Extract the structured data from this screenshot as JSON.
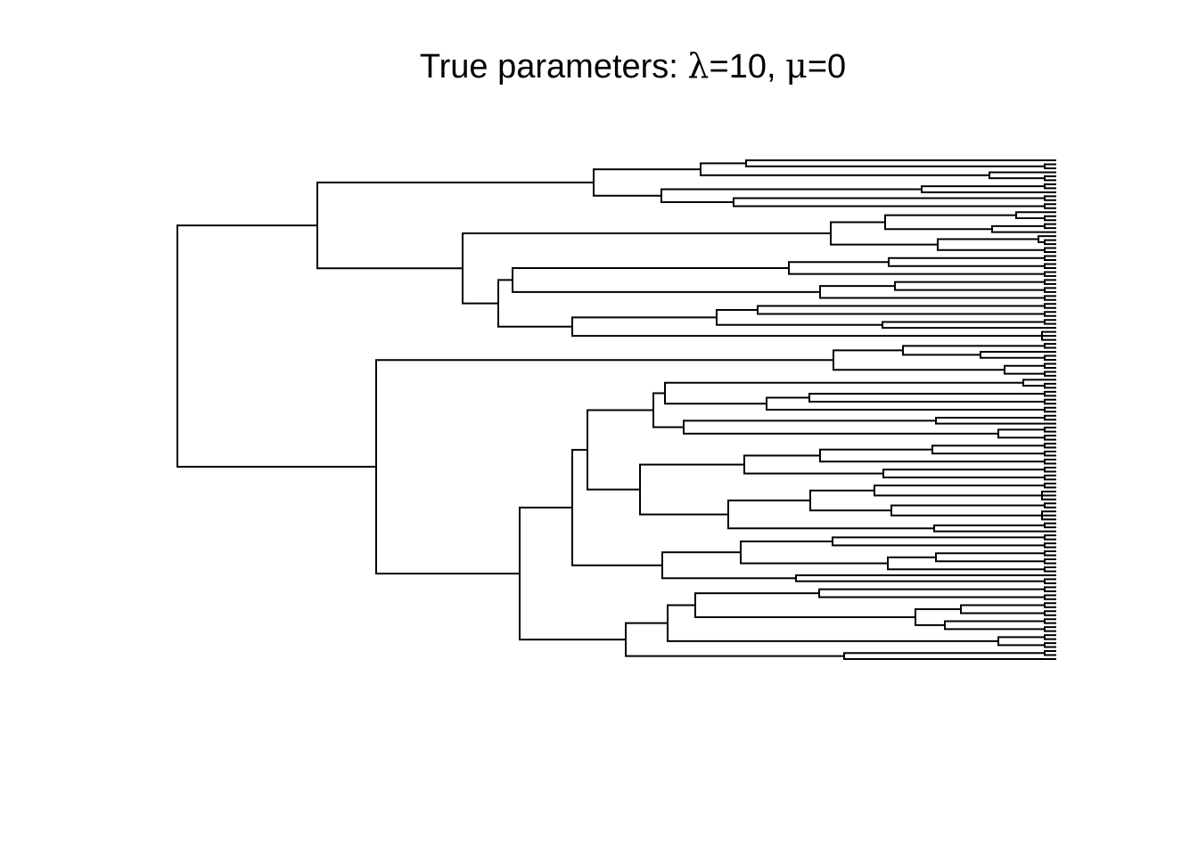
{
  "title": {
    "prefix": "True parameters: ",
    "lambda_symbol": "λ",
    "equals": "=",
    "lambda_value": "10",
    "separator": ", ",
    "mu_symbol": "μ",
    "mu_value": "0"
  },
  "tree": {
    "tip_count": 120,
    "branch_color": "#000000",
    "background_color": "#ffffff"
  }
}
